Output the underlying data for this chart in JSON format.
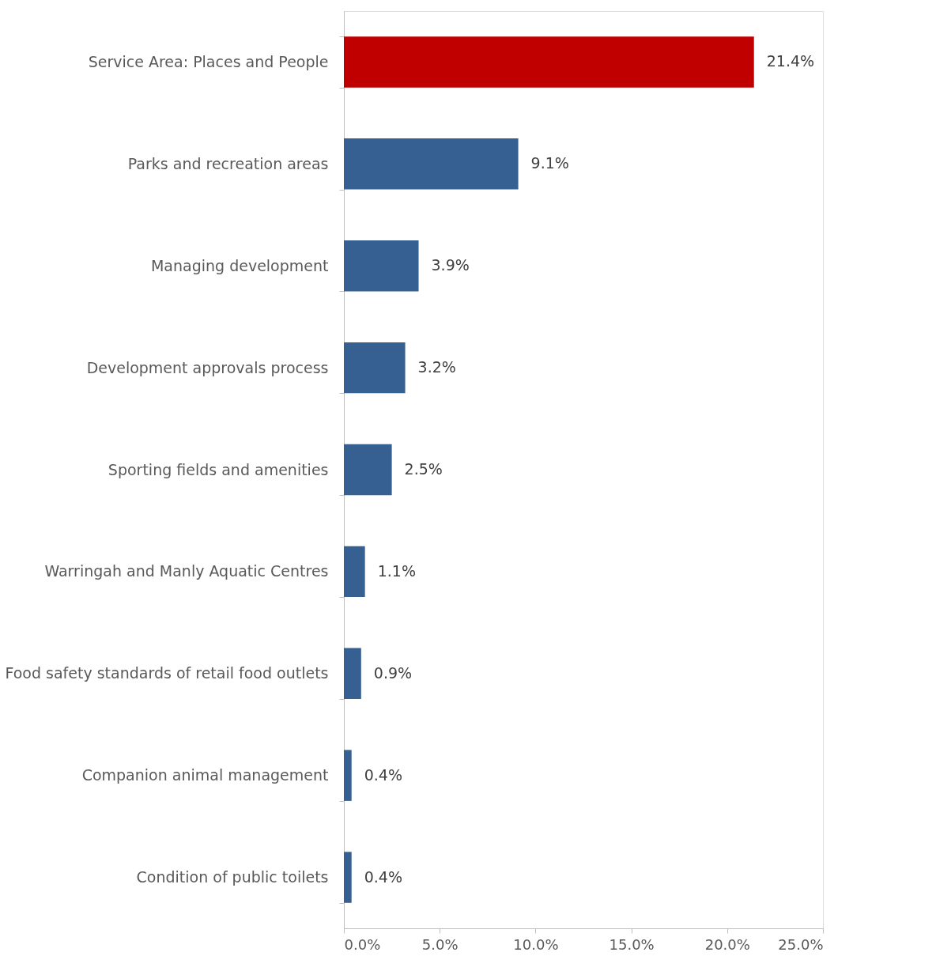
{
  "chart_data": {
    "type": "bar",
    "orientation": "horizontal",
    "categories": [
      "Service Area: Places and People",
      "Parks and recreation areas",
      "Managing development",
      "Development approvals process",
      "Sporting fields and amenities",
      "Warringah and Manly Aquatic Centres",
      "Food safety standards of retail food outlets",
      "Companion animal management",
      "Condition of public toilets"
    ],
    "values": [
      21.4,
      9.1,
      3.9,
      3.2,
      2.5,
      1.1,
      0.9,
      0.4,
      0.4
    ],
    "colors": [
      "#c00000",
      "#366092",
      "#366092",
      "#366092",
      "#366092",
      "#366092",
      "#366092",
      "#366092",
      "#366092"
    ],
    "value_labels": [
      "21.4%",
      "9.1%",
      "3.9%",
      "3.2%",
      "2.5%",
      "1.1%",
      "0.9%",
      "0.4%",
      "0.4%"
    ],
    "xlim": [
      0,
      25
    ],
    "xticks": [
      {
        "value": 0,
        "label": "0.0%"
      },
      {
        "value": 5,
        "label": "5.0%"
      },
      {
        "value": 10,
        "label": "10.0%"
      },
      {
        "value": 15,
        "label": "15.0%"
      },
      {
        "value": 20,
        "label": "20.0%"
      },
      {
        "value": 25,
        "label": "25.0%"
      }
    ],
    "grid": false,
    "legend": false
  }
}
